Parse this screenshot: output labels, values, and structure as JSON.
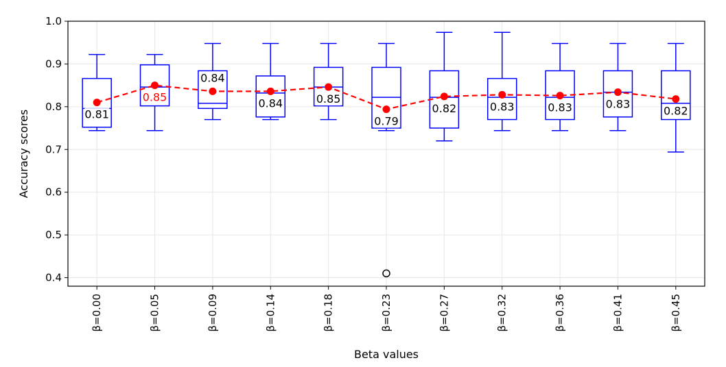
{
  "chart_data": {
    "type": "box",
    "xlabel": "Beta values",
    "ylabel": "Accuracy scores",
    "ylim": [
      0.38,
      1.0
    ],
    "yticks": [
      0.4,
      0.5,
      0.6,
      0.7,
      0.8,
      0.9,
      1.0
    ],
    "ytick_labels": [
      "0.4",
      "0.5",
      "0.6",
      "0.7",
      "0.8",
      "0.9",
      "1.0"
    ],
    "categories": [
      "β=0.00",
      "β=0.05",
      "β=0.09",
      "β=0.14",
      "β=0.18",
      "β=0.23",
      "β=0.27",
      "β=0.32",
      "β=0.36",
      "β=0.41",
      "β=0.45"
    ],
    "grid": true,
    "colors": {
      "box": "#0000ff",
      "mean": "#ff0000",
      "best_label": "#ff0000",
      "label": "#000000",
      "grid": "#e6e6e6"
    },
    "boxes": [
      {
        "whislo": 0.744,
        "q1": 0.752,
        "median": 0.796,
        "q3": 0.866,
        "whishi": 0.922,
        "mean": 0.81,
        "mean_label": "0.81",
        "best": false,
        "fliers": []
      },
      {
        "whislo": 0.744,
        "q1": 0.802,
        "median": 0.846,
        "q3": 0.898,
        "whishi": 0.922,
        "mean": 0.85,
        "mean_label": "0.85",
        "best": true,
        "fliers": []
      },
      {
        "whislo": 0.77,
        "q1": 0.796,
        "median": 0.808,
        "q3": 0.884,
        "whishi": 0.948,
        "mean": 0.836,
        "mean_label": "0.84",
        "best": false,
        "fliers": []
      },
      {
        "whislo": 0.77,
        "q1": 0.776,
        "median": 0.832,
        "q3": 0.872,
        "whishi": 0.948,
        "mean": 0.836,
        "mean_label": "0.84",
        "best": false,
        "fliers": []
      },
      {
        "whislo": 0.77,
        "q1": 0.802,
        "median": 0.846,
        "q3": 0.892,
        "whishi": 0.948,
        "mean": 0.846,
        "mean_label": "0.85",
        "best": false,
        "fliers": []
      },
      {
        "whislo": 0.744,
        "q1": 0.75,
        "median": 0.822,
        "q3": 0.892,
        "whishi": 0.948,
        "mean": 0.794,
        "mean_label": "0.79",
        "best": false,
        "fliers": [
          0.41
        ]
      },
      {
        "whislo": 0.72,
        "q1": 0.75,
        "median": 0.822,
        "q3": 0.884,
        "whishi": 0.974,
        "mean": 0.824,
        "mean_label": "0.82",
        "best": false,
        "fliers": []
      },
      {
        "whislo": 0.744,
        "q1": 0.77,
        "median": 0.822,
        "q3": 0.866,
        "whishi": 0.974,
        "mean": 0.828,
        "mean_label": "0.83",
        "best": false,
        "fliers": []
      },
      {
        "whislo": 0.744,
        "q1": 0.77,
        "median": 0.822,
        "q3": 0.884,
        "whishi": 0.948,
        "mean": 0.826,
        "mean_label": "0.83",
        "best": false,
        "fliers": []
      },
      {
        "whislo": 0.744,
        "q1": 0.776,
        "median": 0.834,
        "q3": 0.884,
        "whishi": 0.948,
        "mean": 0.834,
        "mean_label": "0.83",
        "best": false,
        "fliers": []
      },
      {
        "whislo": 0.694,
        "q1": 0.77,
        "median": 0.808,
        "q3": 0.884,
        "whishi": 0.948,
        "mean": 0.818,
        "mean_label": "0.82",
        "best": false,
        "fliers": []
      }
    ]
  }
}
